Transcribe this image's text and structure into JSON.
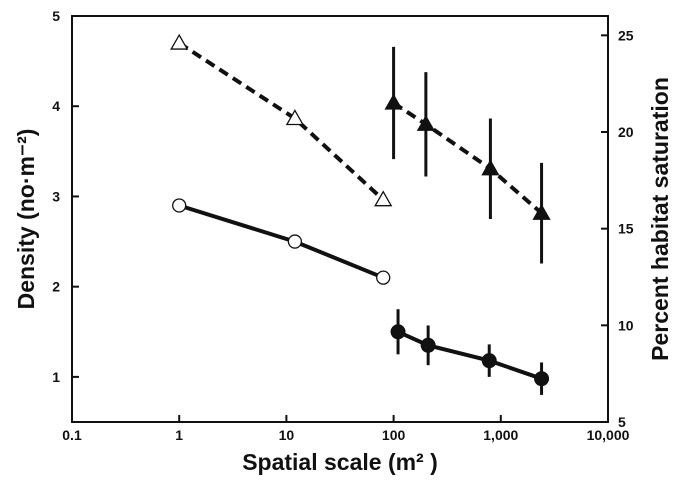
{
  "chart_data": {
    "type": "scatter",
    "title": "",
    "xlabel": "Spatial scale (m² )",
    "ylabel": "Density (no·m⁻²)",
    "ylabel_right": "Percent habitat saturation",
    "x_scale": "log",
    "xlim": [
      0.1,
      10000
    ],
    "ylim": [
      0.5,
      5
    ],
    "ylim_right": [
      5,
      26
    ],
    "x_ticks": [
      0.1,
      1,
      10,
      100,
      1000,
      10000
    ],
    "x_tick_labels": [
      "0.1",
      "1",
      "10",
      "100",
      "1,000",
      "10,000"
    ],
    "y_ticks": [
      1,
      2,
      3,
      4,
      5
    ],
    "y_tick_labels": [
      "1",
      "2",
      "3",
      "4",
      "5"
    ],
    "y_ticks_right": [
      5,
      10,
      15,
      20,
      25
    ],
    "y_tick_labels_right": [
      "5",
      "10",
      "15",
      "20",
      "25"
    ],
    "grid": false,
    "series": [
      {
        "marker": "open-triangle",
        "line": "dashed",
        "axis": "right",
        "x": [
          1,
          12,
          80
        ],
        "y": [
          24.6,
          20.7,
          16.5
        ]
      },
      {
        "marker": "filled-triangle",
        "line": "dashed",
        "axis": "right",
        "x": [
          100,
          200,
          800,
          2400
        ],
        "y": [
          21.5,
          20.4,
          18.1,
          15.8
        ],
        "err": [
          2.9,
          2.7,
          2.6,
          2.6
        ]
      },
      {
        "marker": "open-circle",
        "line": "solid",
        "axis": "left",
        "x": [
          1,
          12,
          80
        ],
        "y": [
          2.9,
          2.5,
          2.1
        ]
      },
      {
        "marker": "filled-circle",
        "line": "solid",
        "axis": "left",
        "x": [
          110,
          210,
          780,
          2400
        ],
        "y": [
          1.5,
          1.35,
          1.18,
          0.98
        ],
        "err": [
          0.25,
          0.22,
          0.18,
          0.18
        ]
      }
    ],
    "colors": {
      "ink": "#111111",
      "background": "#ffffff"
    }
  }
}
